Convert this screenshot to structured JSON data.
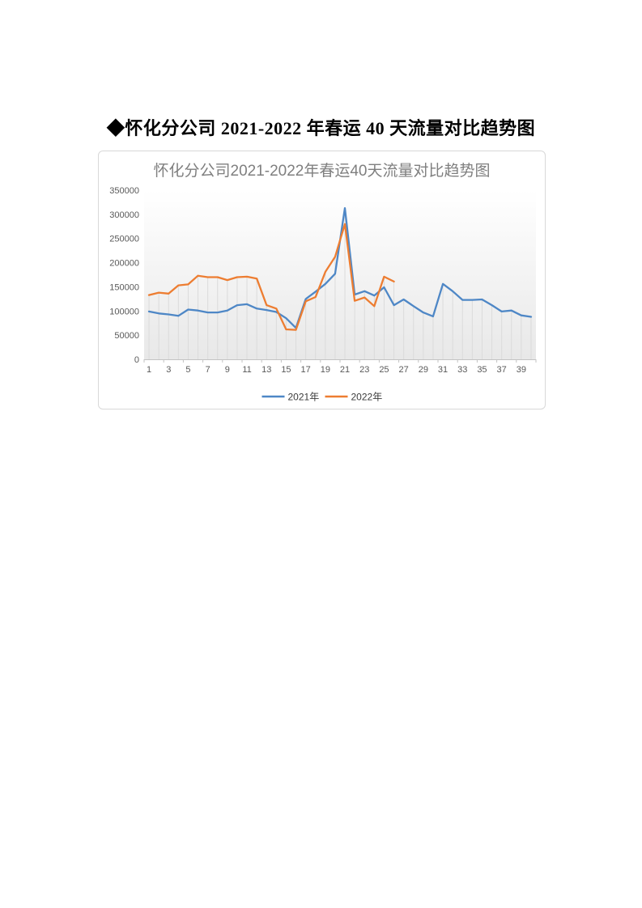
{
  "page": {
    "heading": "◆怀化分公司 2021-2022 年春运 40 天流量对比趋势图"
  },
  "chart": {
    "title": "怀化分公司2021-2022年春运40天流量对比趋势图"
  },
  "chart_data": {
    "type": "line",
    "title": "怀化分公司2021-2022年春运40天流量对比趋势图",
    "x": [
      1,
      2,
      3,
      4,
      5,
      6,
      7,
      8,
      9,
      10,
      11,
      12,
      13,
      14,
      15,
      16,
      17,
      18,
      19,
      20,
      21,
      22,
      23,
      24,
      25,
      26,
      27,
      28,
      29,
      30,
      31,
      32,
      33,
      34,
      35,
      36,
      37,
      38,
      39,
      40
    ],
    "series": [
      {
        "name": "2021年",
        "color": "#4E87C6",
        "values": [
          99000,
          95000,
          93000,
          90000,
          103000,
          101000,
          97000,
          97000,
          101000,
          112000,
          114000,
          105000,
          102000,
          98000,
          85000,
          65000,
          125000,
          140000,
          156000,
          177000,
          313000,
          134000,
          141000,
          132000,
          149000,
          112000,
          124000,
          110000,
          97000,
          89000,
          156000,
          141000,
          123000,
          123000,
          124000,
          112000,
          99000,
          101000,
          91000,
          88000
        ]
      },
      {
        "name": "2022年",
        "color": "#ED7D31",
        "values": [
          133000,
          138000,
          136000,
          153000,
          155000,
          173000,
          170000,
          170000,
          164000,
          170000,
          171000,
          167000,
          112000,
          105000,
          62000,
          61000,
          120000,
          129000,
          181000,
          212000,
          280000,
          121000,
          128000,
          110000,
          171000,
          161000
        ]
      }
    ],
    "ylim": [
      0,
      350000
    ],
    "ytick_interval": 50000,
    "ytick_labels": [
      "0",
      "50000",
      "100000",
      "150000",
      "200000",
      "250000",
      "300000",
      "350000"
    ],
    "xtick_labels": [
      "1",
      "3",
      "5",
      "7",
      "9",
      "11",
      "13",
      "15",
      "17",
      "19",
      "21",
      "23",
      "25",
      "27",
      "29",
      "31",
      "33",
      "35",
      "37",
      "39"
    ],
    "legend_position": "bottom",
    "grid": "vertical-droplines",
    "colors": {
      "axis_text": "#595959",
      "axis_line": "#c3c3c3",
      "dropline": "#dbdbdb",
      "title_text": "#7f7f7f",
      "legend_text": "#3b3b3b",
      "card_border": "#d8d8d8"
    }
  }
}
